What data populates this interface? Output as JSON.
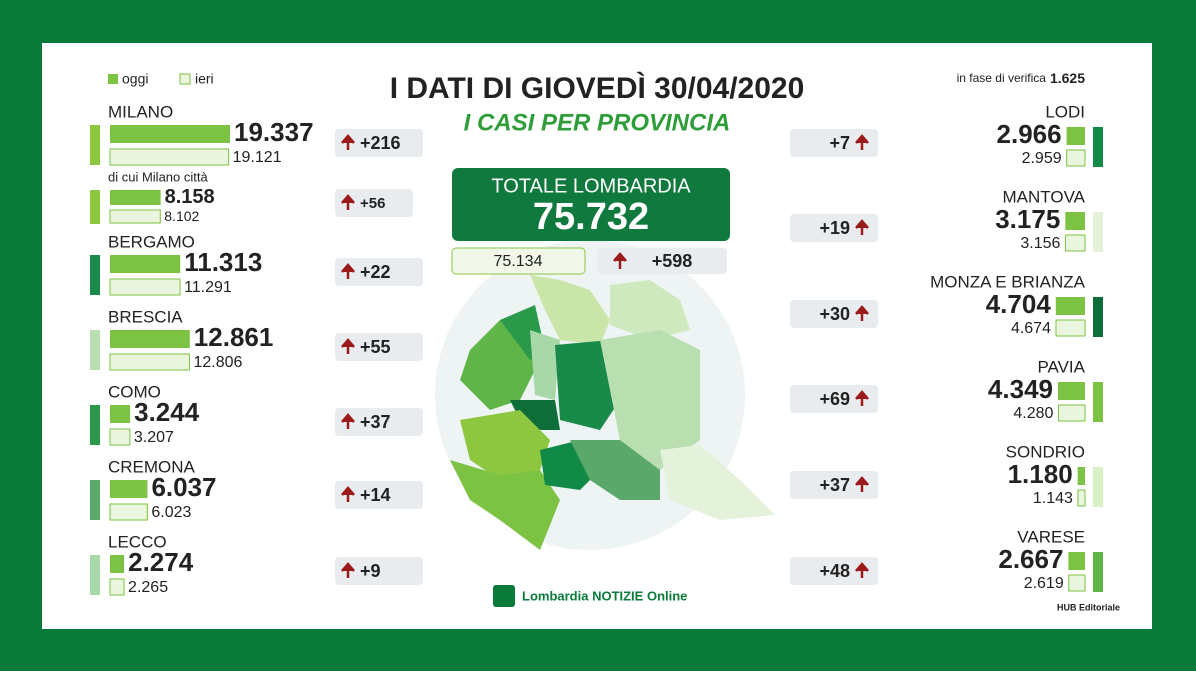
{
  "legend": {
    "today": "oggi",
    "yesterday": "ieri"
  },
  "header": {
    "title": "I DATI DI GIOVEDÌ 30/04/2020",
    "subtitle": "I CASI PER PROVINCIA"
  },
  "verification": {
    "label": "in fase di verifica",
    "value": "1.625"
  },
  "total": {
    "label": "TOTALE LOMBARDIA",
    "today": "75.732",
    "yesterday": "75.134",
    "delta": "+598"
  },
  "left": [
    {
      "name": "MILANO",
      "color": "#8dc63f",
      "today": {
        "value": 19337,
        "label": "19.337"
      },
      "yesterday": {
        "value": 19121,
        "label": "19.121"
      },
      "delta": {
        "value": 216,
        "label": "+216"
      }
    },
    {
      "name": "di cui Milano città",
      "color": "#8dc63f",
      "today": {
        "value": 8158,
        "label": "8.158"
      },
      "yesterday": {
        "value": 8102,
        "label": "8.102"
      },
      "delta": {
        "value": 56,
        "label": "+56"
      }
    },
    {
      "name": "BERGAMO",
      "color": "#1a8a4a",
      "today": {
        "value": 11313,
        "label": "11.313"
      },
      "yesterday": {
        "value": 11291,
        "label": "11.291"
      },
      "delta": {
        "value": 22,
        "label": "+22"
      }
    },
    {
      "name": "BRESCIA",
      "color": "#b9dfb0",
      "today": {
        "value": 12861,
        "label": "12.861"
      },
      "yesterday": {
        "value": 12806,
        "label": "12.806"
      },
      "delta": {
        "value": 55,
        "label": "+55"
      }
    },
    {
      "name": "COMO",
      "color": "#2a9a4a",
      "today": {
        "value": 3244,
        "label": "3.244"
      },
      "yesterday": {
        "value": 3207,
        "label": "3.207"
      },
      "delta": {
        "value": 37,
        "label": "+37"
      }
    },
    {
      "name": "CREMONA",
      "color": "#5aa86a",
      "today": {
        "value": 6037,
        "label": "6.037"
      },
      "yesterday": {
        "value": 6023,
        "label": "6.023"
      },
      "delta": {
        "value": 14,
        "label": "+14"
      }
    },
    {
      "name": "LECCO",
      "color": "#a8d8a8",
      "today": {
        "value": 2274,
        "label": "2.274"
      },
      "yesterday": {
        "value": 2265,
        "label": "2.265"
      },
      "delta": {
        "value": 9,
        "label": "+9"
      }
    }
  ],
  "right": [
    {
      "name": "LODI",
      "color": "#118a48",
      "today": {
        "value": 2966,
        "label": "2.966"
      },
      "yesterday": {
        "value": 2959,
        "label": "2.959"
      },
      "delta": {
        "value": 7,
        "label": "+7"
      }
    },
    {
      "name": "MANTOVA",
      "color": "#e4f2dc",
      "today": {
        "value": 3175,
        "label": "3.175"
      },
      "yesterday": {
        "value": 3156,
        "label": "3.156"
      },
      "delta": {
        "value": 19,
        "label": "+19"
      }
    },
    {
      "name": "MONZA E BRIANZA",
      "color": "#0d6e3a",
      "today": {
        "value": 4704,
        "label": "4.704"
      },
      "yesterday": {
        "value": 4674,
        "label": "4.674"
      },
      "delta": {
        "value": 30,
        "label": "+30"
      }
    },
    {
      "name": "PAVIA",
      "color": "#7cc243",
      "today": {
        "value": 4349,
        "label": "4.349"
      },
      "yesterday": {
        "value": 4280,
        "label": "4.280"
      },
      "delta": {
        "value": 69,
        "label": "+69"
      }
    },
    {
      "name": "SONDRIO",
      "color": "#d9efc4",
      "today": {
        "value": 1180,
        "label": "1.180"
      },
      "yesterday": {
        "value": 1143,
        "label": "1.143"
      },
      "delta": {
        "value": 37,
        "label": "+37"
      }
    },
    {
      "name": "VARESE",
      "color": "#5fb548",
      "today": {
        "value": 2667,
        "label": "2.667"
      },
      "yesterday": {
        "value": 2619,
        "label": "2.619"
      },
      "delta": {
        "value": 48,
        "label": "+48"
      }
    }
  ],
  "footer": {
    "logo": "Lombardia NOTIZIE Online",
    "credit": "HUB Editoriale"
  }
}
